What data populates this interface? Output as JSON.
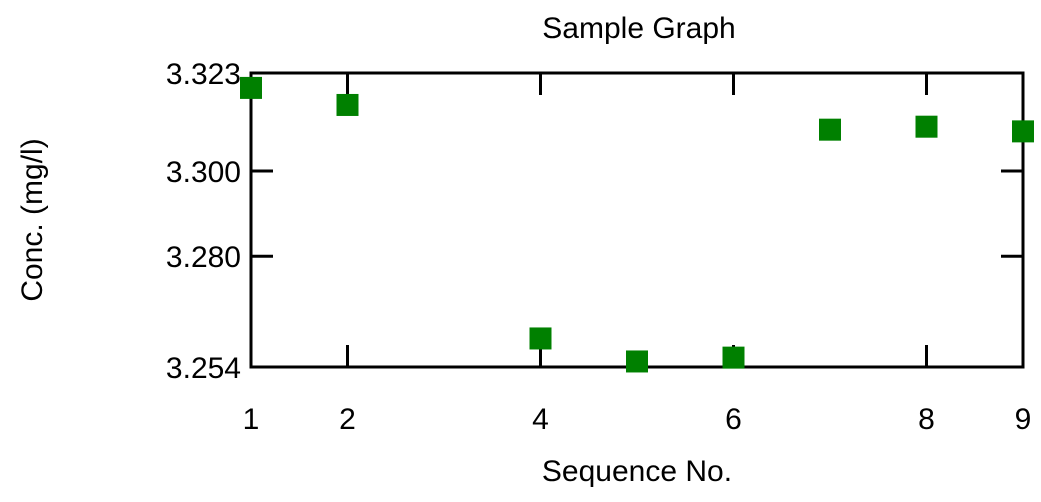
{
  "chart_data": {
    "type": "scatter",
    "title": "Sample Graph",
    "xlabel": "Sequence No.",
    "ylabel": "Conc. (mg/l)",
    "xlim": [
      1,
      9
    ],
    "ylim": [
      3.254,
      3.323
    ],
    "x_ticks": [
      1,
      2,
      4,
      6,
      8,
      9
    ],
    "x_tick_labels": [
      "1",
      "2",
      "4",
      "6",
      "8",
      "9"
    ],
    "y_ticks": [
      3.254,
      3.28,
      3.3,
      3.323
    ],
    "y_tick_labels": [
      "3.254",
      "3.280",
      "3.300",
      "3.323"
    ],
    "grid": false,
    "legend": "none",
    "marker_color": "#008000",
    "marker": "square",
    "series": [
      {
        "x": [
          1,
          2,
          4,
          5,
          6,
          7,
          8,
          9
        ],
        "y": [
          3.3195,
          3.3155,
          3.2607,
          3.2553,
          3.2562,
          3.3097,
          3.3104,
          3.3093
        ]
      }
    ]
  }
}
